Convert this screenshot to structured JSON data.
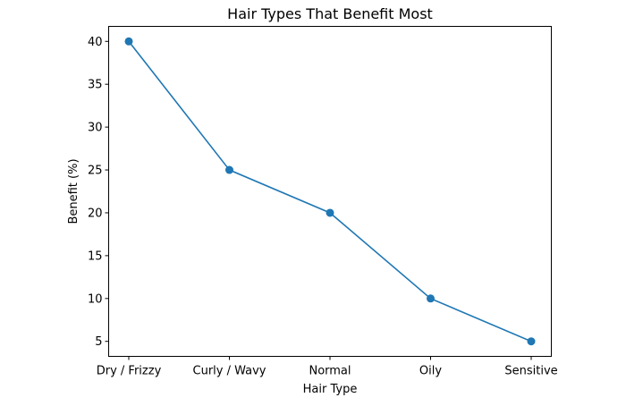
{
  "chart_data": {
    "type": "line",
    "title": "Hair Types That Benefit Most",
    "xlabel": "Hair Type",
    "ylabel": "Benefit (%)",
    "categories": [
      "Dry / Frizzy",
      "Curly / Wavy",
      "Normal",
      "Oily",
      "Sensitive"
    ],
    "values": [
      40,
      25,
      20,
      10,
      5
    ],
    "yticks": [
      5,
      10,
      15,
      20,
      25,
      30,
      35,
      40
    ],
    "ylim": [
      3.25,
      41.75
    ],
    "grid": false,
    "marker": "circle",
    "color": "#1f77b4"
  }
}
